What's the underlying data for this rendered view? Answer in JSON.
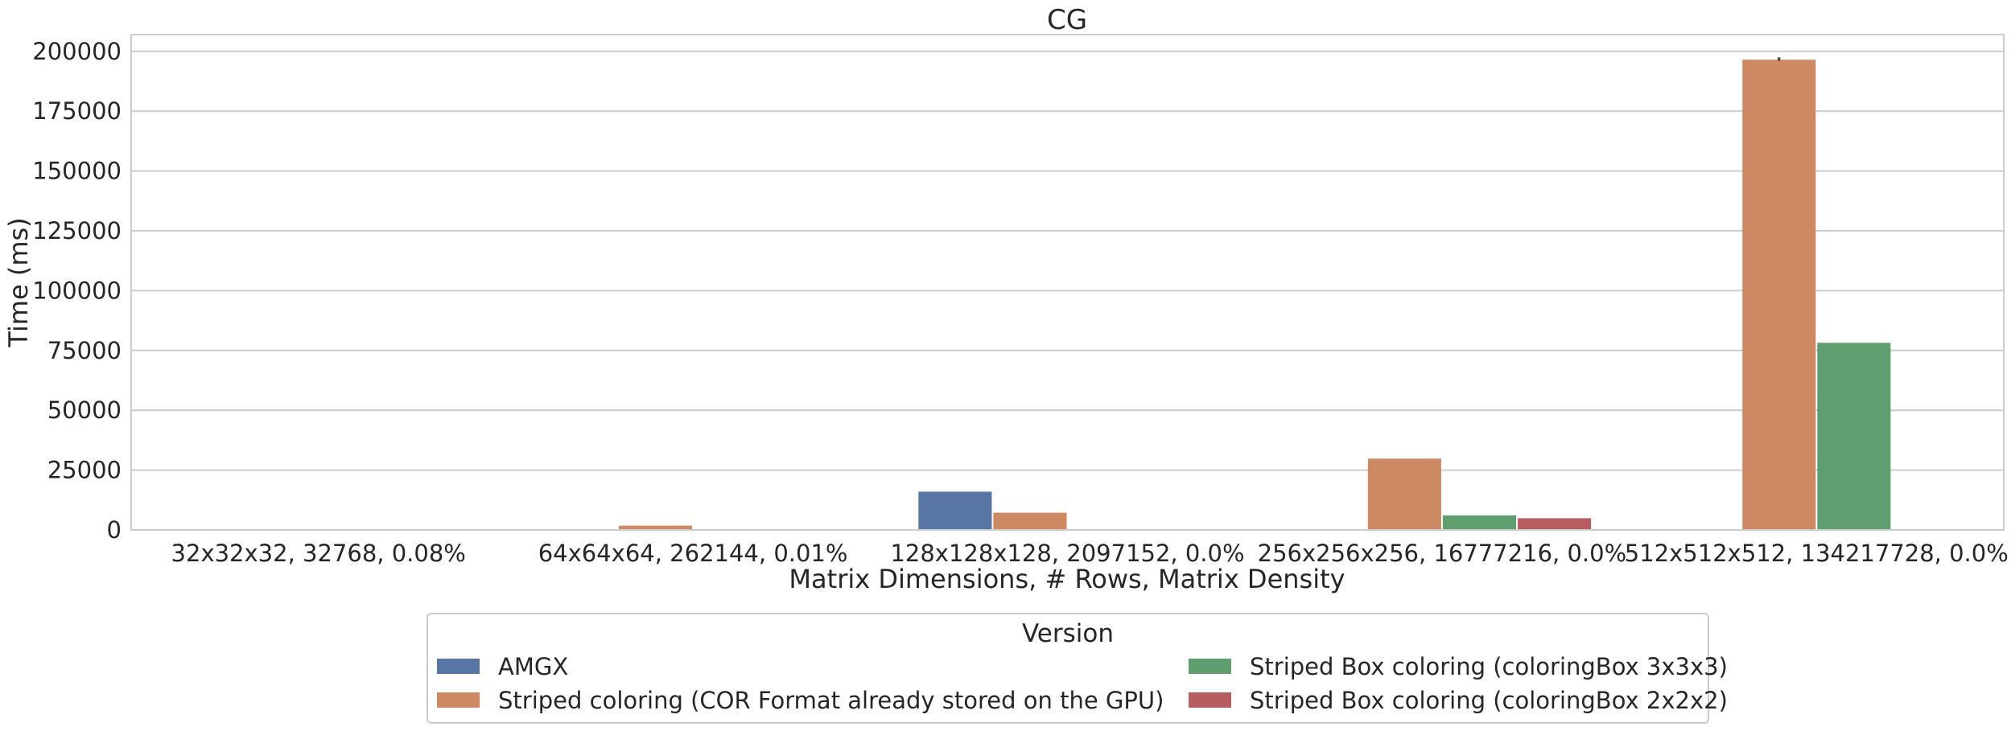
{
  "chart_data": {
    "type": "bar",
    "title": "CG",
    "xlabel": "Matrix Dimensions, # Rows, Matrix Density",
    "ylabel": "Time (ms)",
    "ylim": [
      0,
      207000
    ],
    "yticks": [
      0,
      25000,
      50000,
      75000,
      100000,
      125000,
      150000,
      175000,
      200000
    ],
    "grid": true,
    "legend_position": "bottom-center",
    "legend_title": "Version",
    "categories": [
      "32x32x32, 32768, 0.08%",
      "64x64x64, 262144, 0.01%",
      "128x128x128, 2097152, 0.0%",
      "256x256x256, 16777216, 0.0%",
      "512x512x512, 134217728, 0.0%"
    ],
    "series": [
      {
        "name": "AMGX",
        "color": "#5975a4",
        "values": [
          null,
          null,
          16000,
          null,
          null
        ]
      },
      {
        "name": "Striped coloring (COR Format already stored on the GPU)",
        "color": "#cc8963",
        "values": [
          null,
          1800,
          7200,
          29800,
          196500
        ]
      },
      {
        "name": "Striped Box coloring (coloringBox 3x3x3)",
        "color": "#5f9e6e",
        "values": [
          null,
          null,
          null,
          6100,
          78200
        ]
      },
      {
        "name": "Striped Box coloring (coloringBox 2x2x2)",
        "color": "#b55d60",
        "values": [
          null,
          null,
          null,
          4900,
          null
        ]
      }
    ],
    "error_bars": [
      {
        "series": 1,
        "category": 4,
        "low": 196000,
        "high": 197500
      }
    ],
    "legend_order": [
      0,
      2,
      1,
      3
    ]
  }
}
